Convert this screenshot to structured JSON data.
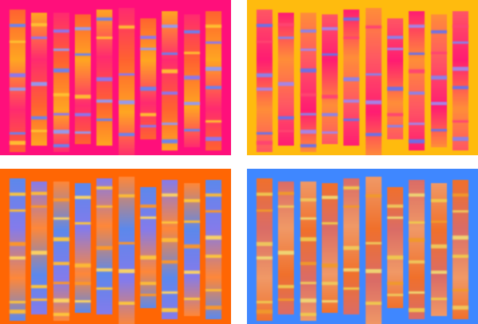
{
  "artwork": {
    "description_hidden": "",
    "panels": [
      {
        "id": "panel-top-left",
        "background": "#ff0f7b",
        "lane_colors": [
          "#ff6a2a",
          "#ffb31a",
          "#ff2d6f"
        ],
        "band_colors": [
          "#5a8cff",
          "#ffd12b",
          "#7f7fff",
          "#8aa6ff"
        ],
        "lane_shift": 0.0
      },
      {
        "id": "panel-top-right",
        "background": "#ffbb0e",
        "lane_colors": [
          "#ff4e6b",
          "#ff0f7b",
          "#ff8a3c"
        ],
        "band_colors": [
          "#5a6cff",
          "#ff3a7a",
          "#7f7fff",
          "#9b82ff"
        ],
        "lane_shift": 0.0
      },
      {
        "id": "panel-bottom-left",
        "background": "#ff6604",
        "lane_colors": [
          "#4f8bff",
          "#7a7dff",
          "#ff8a3d"
        ],
        "band_colors": [
          "#ffd040",
          "#ffc43a",
          "#ff9b2a",
          "#ffe06a"
        ],
        "lane_shift": 0.0
      },
      {
        "id": "panel-bottom-right",
        "background": "#3f87ff",
        "lane_colors": [
          "#ff6f1a",
          "#e86a5a",
          "#ff9b5a"
        ],
        "band_colors": [
          "#ffd040",
          "#ff9b1a",
          "#ffcf50",
          "#ffe06a"
        ],
        "lane_shift": 0.0
      }
    ]
  }
}
